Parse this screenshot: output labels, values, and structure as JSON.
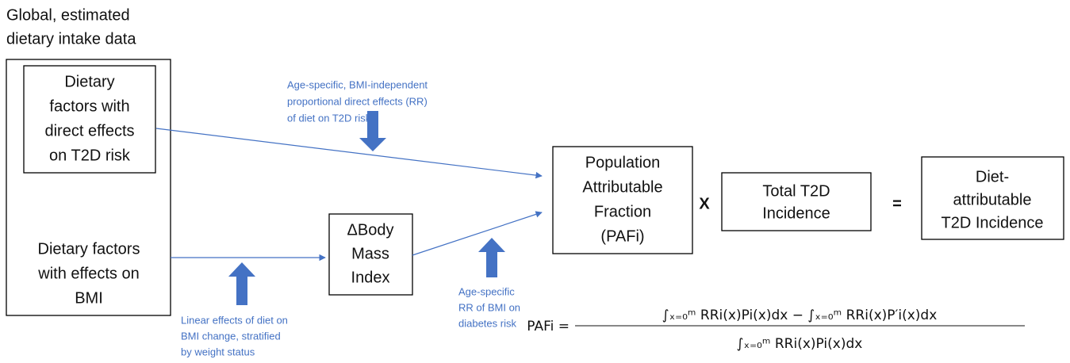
{
  "heading": [
    "Global, estimated",
    "dietary intake data"
  ],
  "direct_box": [
    "Dietary",
    "factors with",
    "direct effects",
    "on T2D risk"
  ],
  "bmi_factors": [
    "Dietary factors",
    "with effects on",
    "BMI"
  ],
  "direct_note": [
    "Age-specific, BMI-independent",
    "proportional direct effects (RR)",
    "of diet on T2D risk"
  ],
  "bmi_box": [
    "ΔBody",
    "Mass",
    "Index"
  ],
  "linear_note": [
    "Linear effects of diet on",
    "BMI change, stratified",
    "by weight status"
  ],
  "rr_note": [
    "Age-specific",
    "RR of BMI on",
    "diabetes risk"
  ],
  "pafi_box": [
    "Population",
    "Attributable",
    "Fraction",
    "(PAFi)"
  ],
  "times": "X",
  "total_box": [
    "Total T2D",
    "Incidence"
  ],
  "equals": "=",
  "result_box": [
    "Diet-",
    "attributable",
    "T2D Incidence"
  ],
  "formula": {
    "lhs": "PAFi =",
    "numerator": "∫ₓ₌₀ᵐ RRi(x)Pi(x)dx − ∫ₓ₌₀ᵐ RRi(x)P′i(x)dx",
    "denominator": "∫ₓ₌₀ᵐ RRi(x)Pi(x)dx"
  }
}
